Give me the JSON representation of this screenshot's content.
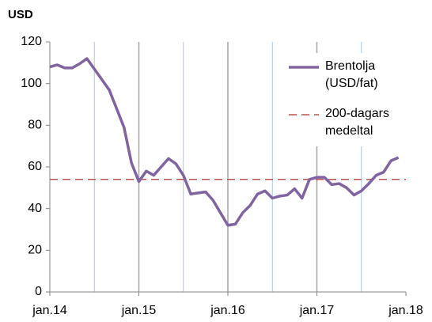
{
  "chart_data": {
    "type": "line",
    "y_axis_label": "USD",
    "x": [
      "2014-01",
      "2014-02",
      "2014-03",
      "2014-04",
      "2014-05",
      "2014-06",
      "2014-07",
      "2014-08",
      "2014-09",
      "2014-10",
      "2014-11",
      "2014-12",
      "2015-01",
      "2015-02",
      "2015-03",
      "2015-04",
      "2015-05",
      "2015-06",
      "2015-07",
      "2015-08",
      "2015-09",
      "2015-10",
      "2015-11",
      "2015-12",
      "2016-01",
      "2016-02",
      "2016-03",
      "2016-04",
      "2016-05",
      "2016-06",
      "2016-07",
      "2016-08",
      "2016-09",
      "2016-10",
      "2016-11",
      "2016-12",
      "2017-01",
      "2017-02",
      "2017-03",
      "2017-04",
      "2017-05",
      "2017-06",
      "2017-07",
      "2017-08",
      "2017-09",
      "2017-10",
      "2017-11",
      "2017-12"
    ],
    "series": [
      {
        "name": "Brentolja (USD/fat)",
        "color": "#8064a2",
        "values": [
          108,
          109,
          107.5,
          107.5,
          109.5,
          112,
          107,
          102,
          97,
          88,
          79,
          62,
          53,
          58,
          56,
          60,
          64,
          61.5,
          56,
          47,
          47.5,
          48,
          44,
          38,
          32,
          32.5,
          38,
          41.5,
          47,
          48.5,
          45,
          46,
          46.5,
          49.5,
          45,
          54,
          55,
          55,
          51.5,
          52,
          50,
          46.5,
          48.5,
          52,
          56,
          57.5,
          63,
          64.5
        ]
      }
    ],
    "reference_line": {
      "name": "200-dagars medeltal",
      "value": 54,
      "color": "#c0504d",
      "style": "dashed"
    },
    "xlim": [
      "2014-01",
      "2018-01"
    ],
    "xticks": [
      {
        "value": "2014-01",
        "label": "jan.14"
      },
      {
        "value": "2015-01",
        "label": "jan.15"
      },
      {
        "value": "2016-01",
        "label": "jan.16"
      },
      {
        "value": "2017-01",
        "label": "jan.17"
      },
      {
        "value": "2018-01",
        "label": "jan.18"
      }
    ],
    "x_minor_grid": [
      "2014-07",
      "2015-07",
      "2016-07",
      "2017-07"
    ],
    "ylim": [
      0,
      120
    ],
    "yticks": [
      0,
      20,
      40,
      60,
      80,
      100,
      120
    ],
    "grid": "vertical",
    "legend": "upper right"
  }
}
